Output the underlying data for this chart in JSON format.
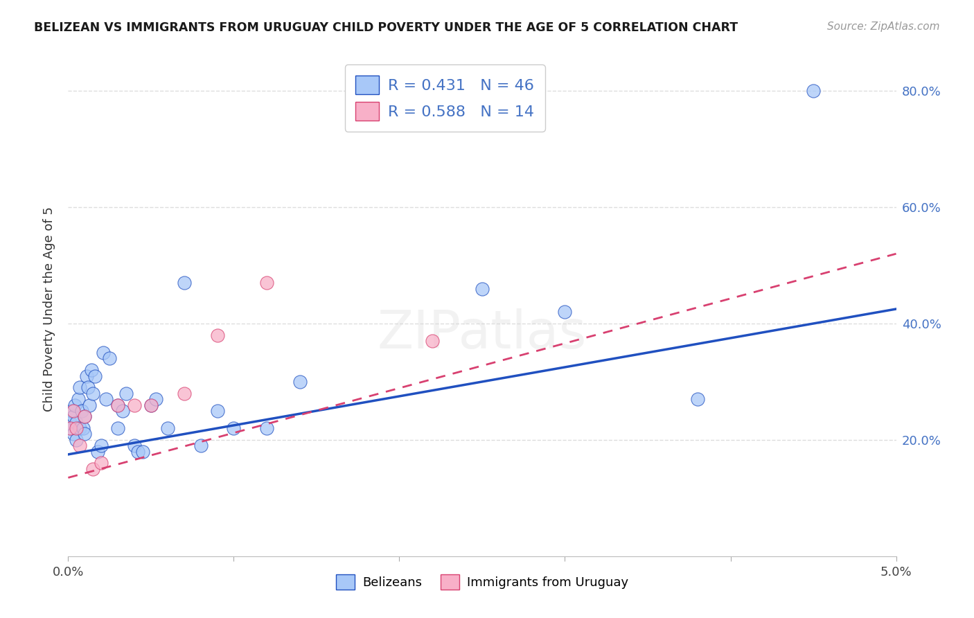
{
  "title": "BELIZEAN VS IMMIGRANTS FROM URUGUAY CHILD POVERTY UNDER THE AGE OF 5 CORRELATION CHART",
  "source": "Source: ZipAtlas.com",
  "ylabel": "Child Poverty Under the Age of 5",
  "xlim": [
    0.0,
    0.05
  ],
  "ylim": [
    0.0,
    0.85
  ],
  "yticks": [
    0.2,
    0.4,
    0.6,
    0.8
  ],
  "ytick_labels": [
    "20.0%",
    "40.0%",
    "60.0%",
    "80.0%"
  ],
  "xticks": [
    0.0,
    0.01,
    0.02,
    0.03,
    0.04,
    0.05
  ],
  "xtick_labels": [
    "0.0%",
    "",
    "",
    "",
    "",
    "5.0%"
  ],
  "r_belizean": 0.431,
  "n_belizean": 46,
  "r_uruguay": 0.588,
  "n_uruguay": 14,
  "color_belizean": "#A8C8F8",
  "color_uruguay": "#F8B0C8",
  "line_color_belizean": "#2050C0",
  "line_color_uruguay": "#D84070",
  "legend_labels": [
    "Belizeans",
    "Immigrants from Uruguay"
  ],
  "watermark": "ZIPatlas",
  "background_color": "#FFFFFF",
  "grid_color": "#DDDDDD",
  "blue_line_y0": 0.175,
  "blue_line_y1": 0.425,
  "pink_line_y0": 0.135,
  "pink_line_y1": 0.52,
  "belizean_x": [
    0.0001,
    0.0002,
    0.0002,
    0.0003,
    0.0003,
    0.0004,
    0.0005,
    0.0005,
    0.0006,
    0.0007,
    0.0007,
    0.0008,
    0.0009,
    0.001,
    0.001,
    0.0011,
    0.0012,
    0.0013,
    0.0014,
    0.0015,
    0.0016,
    0.0018,
    0.002,
    0.0021,
    0.0023,
    0.0025,
    0.003,
    0.003,
    0.0033,
    0.0035,
    0.004,
    0.0042,
    0.0045,
    0.005,
    0.0053,
    0.006,
    0.007,
    0.008,
    0.009,
    0.01,
    0.012,
    0.014,
    0.025,
    0.03,
    0.038,
    0.045
  ],
  "belizean_y": [
    0.23,
    0.22,
    0.25,
    0.24,
    0.21,
    0.26,
    0.23,
    0.2,
    0.27,
    0.29,
    0.22,
    0.25,
    0.22,
    0.24,
    0.21,
    0.31,
    0.29,
    0.26,
    0.32,
    0.28,
    0.31,
    0.18,
    0.19,
    0.35,
    0.27,
    0.34,
    0.22,
    0.26,
    0.25,
    0.28,
    0.19,
    0.18,
    0.18,
    0.26,
    0.27,
    0.22,
    0.47,
    0.19,
    0.25,
    0.22,
    0.22,
    0.3,
    0.46,
    0.42,
    0.27,
    0.8
  ],
  "uruguay_x": [
    0.0001,
    0.0003,
    0.0005,
    0.0007,
    0.001,
    0.0015,
    0.002,
    0.003,
    0.004,
    0.005,
    0.007,
    0.009,
    0.012,
    0.022
  ],
  "uruguay_y": [
    0.22,
    0.25,
    0.22,
    0.19,
    0.24,
    0.15,
    0.16,
    0.26,
    0.26,
    0.26,
    0.28,
    0.38,
    0.47,
    0.37
  ]
}
